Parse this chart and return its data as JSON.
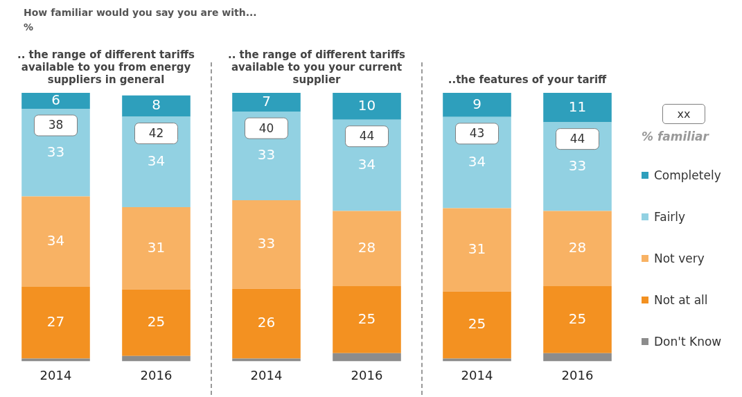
{
  "chart_data": [
    {
      "type": "bar",
      "stacked": true,
      "annotations": [
        "How familiar would you say you are with...",
        "%",
        {
          "text": "38",
          "x": "2014",
          "y": 95
        },
        {
          "text": "42",
          "x": "2016",
          "y": 92
        }
      ],
      "title": ".. the range of different tariffs available to you from energy suppliers in general",
      "categories": [
        "2014",
        "2016"
      ],
      "ylim": [
        0,
        101
      ],
      "series": [
        {
          "color": "#8c8c8c",
          "values": [
            1,
            2
          ],
          "value_labels": [
            null,
            null
          ]
        },
        {
          "color": "#f39121",
          "values": [
            27,
            25
          ],
          "value_labels": [
            "27",
            "25"
          ]
        },
        {
          "color": "#f8b264",
          "values": [
            34,
            31
          ],
          "value_labels": [
            "34",
            "31"
          ]
        },
        {
          "color": "#92d1e2",
          "values": [
            33,
            34
          ],
          "value_labels": [
            "33",
            "34"
          ]
        },
        {
          "color": "#2e9fbc",
          "values": [
            6,
            8
          ],
          "value_labels": [
            "6",
            "8"
          ]
        }
      ]
    },
    {
      "type": "bar",
      "stacked": true,
      "annotations": [
        {
          "text": "40",
          "x": "2014",
          "y": 93
        },
        {
          "text": "44",
          "x": "2016",
          "y": 90
        }
      ],
      "title": ".. the range of different tariffs available to you your current supplier",
      "categories": [
        "2014",
        "2016"
      ],
      "ylim": [
        0,
        100
      ],
      "series": [
        {
          "color": "#8c8c8c",
          "values": [
            1,
            3
          ],
          "value_labels": [
            null,
            null
          ]
        },
        {
          "color": "#f39121",
          "values": [
            26,
            25
          ],
          "value_labels": [
            "26",
            "25"
          ]
        },
        {
          "color": "#f8b264",
          "values": [
            33,
            28
          ],
          "value_labels": [
            "33",
            "28"
          ]
        },
        {
          "color": "#92d1e2",
          "values": [
            33,
            34
          ],
          "value_labels": [
            "33",
            "34"
          ]
        },
        {
          "color": "#2e9fbc",
          "values": [
            7,
            10
          ],
          "value_labels": [
            "7",
            "10"
          ]
        }
      ]
    },
    {
      "type": "bar",
      "stacked": true,
      "title": "..the features of your tariff",
      "categories": [
        "2014",
        "2016"
      ],
      "ylim": [
        0,
        100
      ],
      "legend": "right",
      "legend_title": "% familiar",
      "annotations": [
        "xx",
        {
          "text": "43",
          "x": "2014",
          "y": 91
        },
        {
          "text": "44",
          "x": "2016",
          "y": 89
        }
      ],
      "series": [
        {
          "name": "Don't Know",
          "color": "#8c8c8c",
          "values": [
            1,
            3
          ],
          "value_labels": [
            null,
            null
          ]
        },
        {
          "name": "Not at all",
          "color": "#f39121",
          "values": [
            25,
            25
          ],
          "value_labels": [
            "25",
            "25"
          ]
        },
        {
          "name": "Not very",
          "color": "#f8b264",
          "values": [
            31,
            28
          ],
          "value_labels": [
            "31",
            "28"
          ]
        },
        {
          "name": "Fairly",
          "color": "#92d1e2",
          "values": [
            34,
            33
          ],
          "value_labels": [
            "34",
            "33"
          ]
        },
        {
          "name": "Completely",
          "color": "#2e9fbc",
          "values": [
            9,
            11
          ],
          "value_labels": [
            "9",
            "11"
          ]
        }
      ]
    }
  ]
}
